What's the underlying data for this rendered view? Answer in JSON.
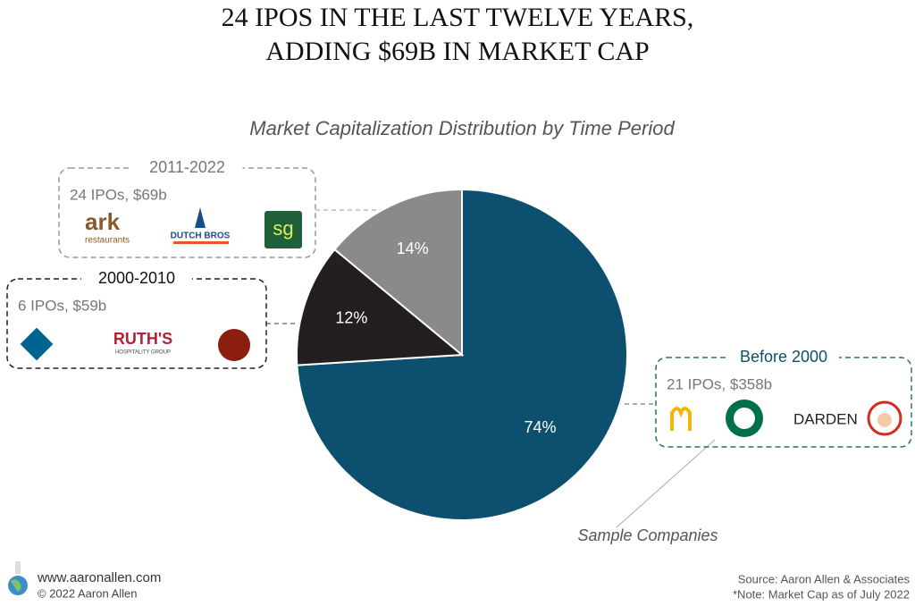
{
  "chart_data": {
    "type": "pie",
    "title": [
      "24 IPOS IN THE LAST TWELVE YEARS,",
      "ADDING $69B IN MARKET CAP"
    ],
    "subtitle": "Market Capitalization Distribution by Time Period",
    "categories": [
      "Before 2000",
      "2000-2010",
      "2011-2022"
    ],
    "values": [
      74,
      12,
      14
    ],
    "value_labels": [
      "74%",
      "12%",
      "14%"
    ],
    "colors": [
      "#0d4f6e",
      "#231f20",
      "#8a8a8a"
    ],
    "callouts": [
      {
        "details": "21 IPOs, $358b",
        "logo_texts": [
          "DARDEN"
        ]
      },
      {
        "details": "6 IPOs, $59b",
        "logo_texts": [
          "RUTH'S",
          "HOSPITALITY GROUP"
        ]
      },
      {
        "details": "24 IPOs, $69b",
        "logo_texts": [
          "ark",
          "restaurants",
          "DUTCH BROS",
          "sg"
        ]
      }
    ],
    "annotation": "Sample Companies"
  },
  "footer": {
    "website": "www.aaronallen.com",
    "copyright": "© 2022 Aaron Allen",
    "source": "Source: Aaron Allen & Associates",
    "note": "*Note: Market Cap as of July 2022"
  }
}
